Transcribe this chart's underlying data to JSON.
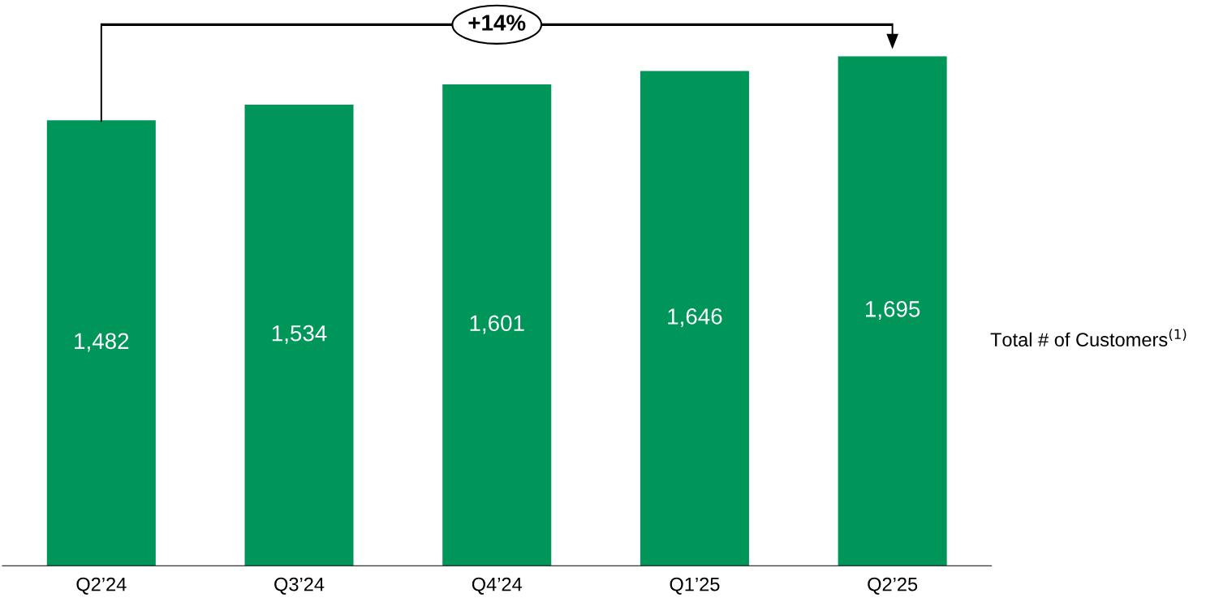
{
  "chart_data": {
    "type": "bar",
    "categories": [
      "Q2’24",
      "Q3’24",
      "Q4’24",
      "Q1’25",
      "Q2’25"
    ],
    "values": [
      1482,
      1534,
      1601,
      1646,
      1695
    ],
    "color": "#00965a",
    "data_labels": true,
    "value_labels": [
      "1,482",
      "1,534",
      "1,601",
      "1,646",
      "1,695"
    ],
    "tick_labels": "x",
    "grid": false,
    "annotations": [
      "+14%",
      "Total # of Customers$^{(1)}$"
    ]
  }
}
